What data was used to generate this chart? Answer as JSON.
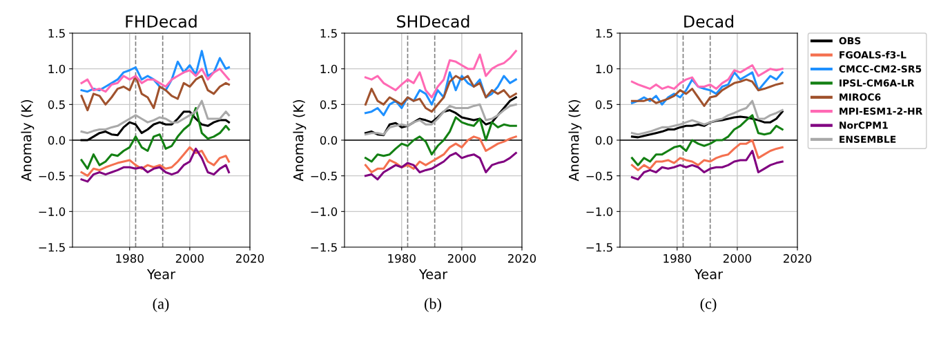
{
  "chart_data": [
    {
      "type": "line",
      "title": "FHDecad",
      "xlabel": "Year",
      "ylabel": "Anomaly (K)",
      "annotations": [
        "(a)"
      ],
      "grid": true,
      "legend": false,
      "xlim": [
        1961,
        2020
      ],
      "xticks": [
        1980,
        2000,
        2020
      ],
      "ylim": [
        -1.5,
        1.5
      ],
      "yticks": [
        {
          "value": -1.5,
          "label": "−1.5"
        },
        {
          "value": -1.0,
          "label": "−1.0"
        },
        {
          "value": -0.5,
          "label": "−0.5"
        },
        {
          "value": 0,
          "label": "0.0"
        },
        {
          "value": 0.5,
          "label": "0.5"
        },
        {
          "value": 1.0,
          "label": "1.0"
        },
        {
          "value": 1.5,
          "label": "1.5"
        }
      ],
      "ref_lines": [
        {
          "axis": "x",
          "value": 1982,
          "color": "#808080",
          "line_style": "dashed"
        },
        {
          "axis": "x",
          "value": 1991,
          "color": "#808080",
          "line_style": "dashed"
        },
        {
          "axis": "y",
          "value": 0,
          "color": "#000000",
          "line_style": "solid"
        }
      ],
      "x": [
        1964,
        1966,
        1968,
        1970,
        1972,
        1974,
        1976,
        1978,
        1980,
        1982,
        1984,
        1986,
        1988,
        1990,
        1992,
        1994,
        1996,
        1998,
        2000,
        2002,
        2004,
        2006,
        2008,
        2010,
        2012,
        2013
      ],
      "series": [
        {
          "color": "#000000",
          "values": [
            0.0,
            0.0,
            0.05,
            0.1,
            0.12,
            0.08,
            0.07,
            0.18,
            0.25,
            0.22,
            0.1,
            0.15,
            0.22,
            0.25,
            0.22,
            0.22,
            0.3,
            0.4,
            0.4,
            0.3,
            0.22,
            0.2,
            0.25,
            0.28,
            0.28,
            0.25
          ]
        },
        {
          "color": "#f4704f",
          "values": [
            -0.45,
            -0.5,
            -0.4,
            -0.42,
            -0.38,
            -0.35,
            -0.32,
            -0.3,
            -0.28,
            -0.35,
            -0.4,
            -0.35,
            -0.38,
            -0.35,
            -0.4,
            -0.38,
            -0.3,
            -0.2,
            -0.1,
            -0.18,
            -0.15,
            -0.3,
            -0.35,
            -0.25,
            -0.22,
            -0.3
          ]
        },
        {
          "color": "#1e90ff",
          "values": [
            0.7,
            0.68,
            0.72,
            0.7,
            0.75,
            0.8,
            0.85,
            0.95,
            0.98,
            1.02,
            0.85,
            0.9,
            0.85,
            0.75,
            0.7,
            0.85,
            1.1,
            0.95,
            1.05,
            0.92,
            1.25,
            0.9,
            0.95,
            1.15,
            1.0,
            1.02
          ]
        },
        {
          "color": "#138013",
          "values": [
            -0.28,
            -0.4,
            -0.2,
            -0.35,
            -0.3,
            -0.2,
            -0.22,
            -0.15,
            -0.1,
            0.05,
            -0.1,
            -0.15,
            0.05,
            0.08,
            -0.12,
            -0.08,
            0.05,
            0.15,
            0.22,
            0.45,
            0.1,
            0.02,
            0.05,
            0.1,
            0.2,
            0.15
          ]
        },
        {
          "color": "#a0522d",
          "values": [
            0.62,
            0.42,
            0.65,
            0.62,
            0.5,
            0.6,
            0.72,
            0.75,
            0.7,
            0.9,
            0.65,
            0.6,
            0.45,
            0.75,
            0.7,
            0.62,
            0.58,
            0.8,
            0.75,
            0.85,
            0.9,
            0.7,
            0.65,
            0.75,
            0.8,
            0.78
          ]
        },
        {
          "color": "#ff69b4",
          "values": [
            0.8,
            0.85,
            0.7,
            0.72,
            0.68,
            0.78,
            0.8,
            0.9,
            0.85,
            0.9,
            0.8,
            0.85,
            0.85,
            0.8,
            0.75,
            0.85,
            0.9,
            0.95,
            0.98,
            0.9,
            1.0,
            0.85,
            0.95,
            1.0,
            0.9,
            0.85
          ]
        },
        {
          "color": "#800080",
          "values": [
            -0.55,
            -0.58,
            -0.48,
            -0.45,
            -0.48,
            -0.45,
            -0.42,
            -0.38,
            -0.38,
            -0.4,
            -0.38,
            -0.45,
            -0.4,
            -0.38,
            -0.45,
            -0.48,
            -0.45,
            -0.35,
            -0.3,
            -0.12,
            -0.25,
            -0.45,
            -0.48,
            -0.4,
            -0.35,
            -0.45
          ]
        },
        {
          "color": "#a9a9a9",
          "values": [
            0.12,
            0.1,
            0.13,
            0.15,
            0.15,
            0.18,
            0.2,
            0.25,
            0.3,
            0.35,
            0.3,
            0.25,
            0.28,
            0.32,
            0.3,
            0.25,
            0.25,
            0.3,
            0.35,
            0.4,
            0.55,
            0.3,
            0.3,
            0.3,
            0.4,
            0.35
          ]
        }
      ]
    },
    {
      "type": "line",
      "title": "SHDecad",
      "xlabel": "Year",
      "ylabel": "Anomaly (K)",
      "annotations": [
        "(b)"
      ],
      "grid": true,
      "legend": false,
      "xlim": [
        1961,
        2020
      ],
      "xticks": [
        1980,
        2000,
        2020
      ],
      "ylim": [
        -1.5,
        1.5
      ],
      "yticks": [
        {
          "value": -1.5,
          "label": "−1.5"
        },
        {
          "value": -1.0,
          "label": "−1.0"
        },
        {
          "value": -0.5,
          "label": "−0.5"
        },
        {
          "value": 0,
          "label": "0.0"
        },
        {
          "value": 0.5,
          "label": "0.5"
        },
        {
          "value": 1.0,
          "label": "1.0"
        },
        {
          "value": 1.5,
          "label": "1.5"
        }
      ],
      "ref_lines": [
        {
          "axis": "x",
          "value": 1982,
          "color": "#808080",
          "line_style": "dashed"
        },
        {
          "axis": "x",
          "value": 1991,
          "color": "#808080",
          "line_style": "dashed"
        },
        {
          "axis": "y",
          "value": 0,
          "color": "#000000",
          "line_style": "solid"
        }
      ],
      "x": [
        1968,
        1970,
        1972,
        1974,
        1976,
        1978,
        1980,
        1982,
        1984,
        1986,
        1988,
        1990,
        1992,
        1994,
        1996,
        1998,
        2000,
        2002,
        2004,
        2006,
        2008,
        2010,
        2012,
        2014,
        2016,
        2018
      ],
      "series": [
        {
          "color": "#000000",
          "values": [
            0.1,
            0.12,
            0.08,
            0.07,
            0.22,
            0.24,
            0.18,
            0.2,
            0.25,
            0.3,
            0.28,
            0.25,
            0.32,
            0.4,
            0.42,
            0.38,
            0.32,
            0.3,
            0.28,
            0.3,
            0.22,
            0.25,
            0.35,
            0.45,
            0.55,
            0.6
          ]
        },
        {
          "color": "#f4704f",
          "values": [
            -0.35,
            -0.45,
            -0.4,
            -0.4,
            -0.28,
            -0.32,
            -0.38,
            -0.35,
            -0.4,
            -0.3,
            -0.35,
            -0.3,
            -0.25,
            -0.2,
            -0.1,
            -0.05,
            -0.1,
            0.0,
            0.05,
            0.02,
            -0.15,
            -0.1,
            -0.05,
            -0.02,
            0.02,
            0.05
          ]
        },
        {
          "color": "#1e90ff",
          "values": [
            0.38,
            0.4,
            0.45,
            0.35,
            0.5,
            0.55,
            0.45,
            0.6,
            0.55,
            0.7,
            0.65,
            0.5,
            0.7,
            0.6,
            0.95,
            0.7,
            0.9,
            0.8,
            0.75,
            0.85,
            0.6,
            0.65,
            0.75,
            0.9,
            0.8,
            0.85
          ]
        },
        {
          "color": "#138013",
          "values": [
            -0.25,
            -0.3,
            -0.2,
            -0.22,
            -0.2,
            -0.12,
            -0.05,
            -0.08,
            0.0,
            0.05,
            -0.02,
            -0.2,
            -0.08,
            0.0,
            0.12,
            0.32,
            0.25,
            0.22,
            0.2,
            0.3,
            0.0,
            0.25,
            0.18,
            0.22,
            0.2,
            0.2
          ]
        },
        {
          "color": "#a0522d",
          "values": [
            0.5,
            0.72,
            0.55,
            0.5,
            0.6,
            0.55,
            0.5,
            0.6,
            0.55,
            0.58,
            0.45,
            0.4,
            0.5,
            0.6,
            0.82,
            0.9,
            0.85,
            0.9,
            0.75,
            0.8,
            0.6,
            0.7,
            0.65,
            0.7,
            0.6,
            0.65
          ]
        },
        {
          "color": "#ff69b4",
          "values": [
            0.88,
            0.85,
            0.9,
            0.8,
            0.75,
            0.7,
            0.78,
            0.85,
            0.8,
            0.95,
            0.7,
            0.6,
            0.75,
            0.85,
            1.12,
            1.1,
            1.05,
            1.0,
            1.0,
            1.2,
            0.9,
            1.0,
            1.05,
            1.08,
            1.15,
            1.25
          ]
        },
        {
          "color": "#800080",
          "values": [
            -0.5,
            -0.48,
            -0.55,
            -0.45,
            -0.4,
            -0.35,
            -0.38,
            -0.32,
            -0.35,
            -0.45,
            -0.42,
            -0.4,
            -0.35,
            -0.3,
            -0.22,
            -0.18,
            -0.25,
            -0.22,
            -0.2,
            -0.25,
            -0.45,
            -0.35,
            -0.32,
            -0.3,
            -0.25,
            -0.18
          ]
        },
        {
          "color": "#a9a9a9",
          "values": [
            0.08,
            0.1,
            0.1,
            0.08,
            0.18,
            0.2,
            0.22,
            0.2,
            0.25,
            0.28,
            0.22,
            0.22,
            0.3,
            0.4,
            0.48,
            0.45,
            0.45,
            0.45,
            0.48,
            0.5,
            0.28,
            0.3,
            0.35,
            0.42,
            0.48,
            0.5
          ]
        }
      ]
    },
    {
      "type": "line",
      "title": "Decad",
      "xlabel": "Year",
      "ylabel": "Anomaly (K)",
      "annotations": [
        "(c)"
      ],
      "grid": true,
      "legend": "right",
      "xlim": [
        1961,
        2020
      ],
      "xticks": [
        1980,
        2000,
        2020
      ],
      "ylim": [
        -1.5,
        1.5
      ],
      "yticks": [
        {
          "value": -1.5,
          "label": "−1.5"
        },
        {
          "value": -1.0,
          "label": "−1.0"
        },
        {
          "value": -0.5,
          "label": "−0.5"
        },
        {
          "value": 0,
          "label": "0.0"
        },
        {
          "value": 0.5,
          "label": "0.5"
        },
        {
          "value": 1.0,
          "label": "1.0"
        },
        {
          "value": 1.5,
          "label": "1.5"
        }
      ],
      "ref_lines": [
        {
          "axis": "x",
          "value": 1982,
          "color": "#808080",
          "line_style": "dashed"
        },
        {
          "axis": "x",
          "value": 1991,
          "color": "#808080",
          "line_style": "dashed"
        },
        {
          "axis": "y",
          "value": 0,
          "color": "#000000",
          "line_style": "solid"
        }
      ],
      "x": [
        1965,
        1967,
        1969,
        1971,
        1973,
        1975,
        1977,
        1979,
        1981,
        1983,
        1985,
        1987,
        1989,
        1991,
        1993,
        1995,
        1997,
        1999,
        2001,
        2003,
        2005,
        2007,
        2009,
        2011,
        2013,
        2015
      ],
      "series": [
        {
          "name": "OBS",
          "color": "#000000",
          "values": [
            0.05,
            0.04,
            0.06,
            0.08,
            0.1,
            0.12,
            0.15,
            0.15,
            0.18,
            0.2,
            0.2,
            0.22,
            0.2,
            0.25,
            0.27,
            0.28,
            0.3,
            0.32,
            0.33,
            0.32,
            0.3,
            0.28,
            0.25,
            0.25,
            0.3,
            0.4
          ]
        },
        {
          "name": "FGOALS-f3-L",
          "color": "#f4704f",
          "values": [
            -0.35,
            -0.42,
            -0.35,
            -0.4,
            -0.3,
            -0.3,
            -0.28,
            -0.32,
            -0.25,
            -0.28,
            -0.3,
            -0.35,
            -0.28,
            -0.3,
            -0.25,
            -0.22,
            -0.2,
            -0.12,
            -0.05,
            -0.05,
            0.0,
            -0.25,
            -0.2,
            -0.15,
            -0.12,
            -0.1
          ]
        },
        {
          "name": "CMCC-CM2-SR5",
          "color": "#1e90ff",
          "values": [
            0.52,
            0.55,
            0.6,
            0.55,
            0.62,
            0.5,
            0.6,
            0.65,
            0.6,
            0.7,
            0.85,
            0.75,
            0.72,
            0.7,
            0.65,
            0.75,
            0.78,
            0.95,
            0.85,
            0.9,
            0.95,
            0.7,
            0.8,
            0.9,
            0.85,
            0.95
          ]
        },
        {
          "name": "IPSL-CM6A-LR",
          "color": "#138013",
          "values": [
            -0.25,
            -0.35,
            -0.25,
            -0.3,
            -0.2,
            -0.2,
            -0.15,
            -0.1,
            -0.08,
            -0.15,
            0.0,
            -0.05,
            -0.08,
            -0.05,
            0.0,
            0.0,
            0.05,
            0.15,
            0.2,
            0.28,
            0.35,
            0.1,
            0.08,
            0.1,
            0.2,
            0.15
          ]
        },
        {
          "name": "MIROC6",
          "color": "#a0522d",
          "values": [
            0.55,
            0.55,
            0.55,
            0.58,
            0.52,
            0.55,
            0.58,
            0.62,
            0.7,
            0.65,
            0.72,
            0.6,
            0.48,
            0.6,
            0.62,
            0.7,
            0.75,
            0.8,
            0.82,
            0.85,
            0.82,
            0.7,
            0.72,
            0.75,
            0.78,
            0.8
          ]
        },
        {
          "name": "MPI-ESM1-2-HR",
          "color": "#ff69b4",
          "values": [
            0.82,
            0.78,
            0.75,
            0.72,
            0.78,
            0.72,
            0.75,
            0.72,
            0.8,
            0.85,
            0.88,
            0.75,
            0.75,
            0.78,
            0.72,
            0.8,
            0.85,
            0.98,
            0.95,
            1.0,
            1.05,
            0.9,
            0.95,
            1.0,
            0.98,
            1.0
          ]
        },
        {
          "name": "NorCPM1",
          "color": "#800080",
          "values": [
            -0.52,
            -0.55,
            -0.45,
            -0.42,
            -0.45,
            -0.38,
            -0.4,
            -0.38,
            -0.35,
            -0.38,
            -0.35,
            -0.38,
            -0.45,
            -0.4,
            -0.38,
            -0.38,
            -0.35,
            -0.3,
            -0.28,
            -0.28,
            -0.15,
            -0.45,
            -0.4,
            -0.35,
            -0.32,
            -0.3
          ]
        },
        {
          "name": "ENSEMBLE",
          "color": "#a9a9a9",
          "values": [
            0.1,
            0.08,
            0.1,
            0.12,
            0.15,
            0.18,
            0.18,
            0.2,
            0.22,
            0.25,
            0.28,
            0.25,
            0.22,
            0.25,
            0.28,
            0.3,
            0.35,
            0.38,
            0.42,
            0.45,
            0.55,
            0.3,
            0.3,
            0.35,
            0.38,
            0.42
          ]
        }
      ]
    }
  ]
}
